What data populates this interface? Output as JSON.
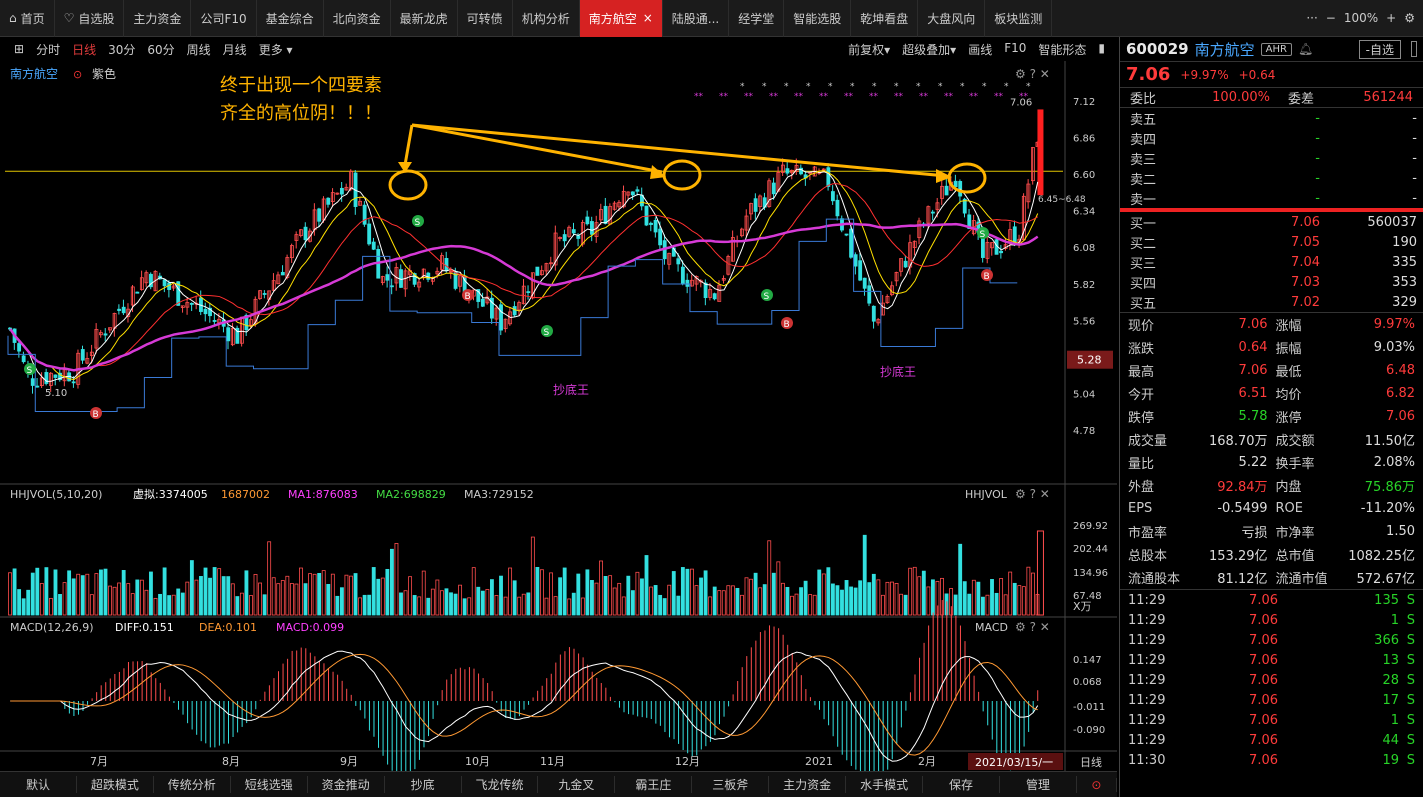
{
  "top_tabs": [
    "首页",
    "自选股",
    "主力资金",
    "公司F10",
    "基金综合",
    "北向资金",
    "最新龙虎",
    "可转债",
    "机构分析",
    "南方航空",
    "陆股通...",
    "经学堂",
    "智能选股",
    "乾坤看盘",
    "大盘风向",
    "板块监测"
  ],
  "active_tab": "南方航空",
  "zoom": "100%",
  "periods": [
    "分时",
    "日线",
    "30分",
    "60分",
    "周线",
    "月线",
    "更多"
  ],
  "active_period": "日线",
  "toolbar_right": [
    "前复权",
    "超级叠加",
    "画线",
    "F10",
    "智能形态"
  ],
  "chart_title": "南方航空",
  "chart_overlay": "紫色",
  "annotation_line1": "终于出现一个四要素",
  "annotation_line2": "齐全的高位阴！！！",
  "chaodi": "抄底王",
  "price_axis": [
    "7.12",
    "6.86",
    "6.60",
    "6.34",
    "6.08",
    "5.82",
    "5.56",
    "5.28",
    "5.04",
    "4.78"
  ],
  "current_label": "5.28",
  "high_label": "7.06",
  "range_label": "6.45~6.48",
  "low_mark": "5.10",
  "vol_header": {
    "name": "HHJVOL(5,10,20)",
    "virtual": "虚拟:3374005",
    "v2": "1687002",
    "ma1": "MA1:876083",
    "ma2": "MA2:698829",
    "ma3": "MA3:729152",
    "tag": "HHJVOL"
  },
  "vol_axis": [
    "269.92",
    "202.44",
    "134.96",
    "67.48"
  ],
  "vol_unit": "X万",
  "macd_header": {
    "name": "MACD(12,26,9)",
    "diff": "DIFF:0.151",
    "dea": "DEA:0.101",
    "macd": "MACD:0.099",
    "tag": "MACD"
  },
  "macd_axis": [
    "0.147",
    "0.068",
    "-0.011",
    "-0.090"
  ],
  "months": [
    "7月",
    "8月",
    "9月",
    "10月",
    "11月",
    "12月",
    "2021",
    "2月"
  ],
  "date_label": "2021/03/15/一",
  "date_mode": "日线",
  "bottom": [
    "默认",
    "超跌模式",
    "传统分析",
    "短线选强",
    "资金推动",
    "抄底",
    "飞龙传统",
    "九金叉",
    "霸王庄",
    "三板斧",
    "主力资金",
    "水手模式",
    "保存",
    "管理"
  ],
  "stock": {
    "code": "600029",
    "name": "南方航空",
    "tag": "AHR",
    "zixuan": "-自选",
    "price": "7.06",
    "pct": "+9.97%",
    "chg": "+0.64"
  },
  "weibi": {
    "k1": "委比",
    "v1": "100.00%",
    "k2": "委差",
    "v2": "561244"
  },
  "sells": [
    {
      "l": "卖五",
      "p": "-",
      "v": "-"
    },
    {
      "l": "卖四",
      "p": "-",
      "v": "-"
    },
    {
      "l": "卖三",
      "p": "-",
      "v": "-"
    },
    {
      "l": "卖二",
      "p": "-",
      "v": "-"
    },
    {
      "l": "卖一",
      "p": "-",
      "v": "-"
    }
  ],
  "buys": [
    {
      "l": "买一",
      "p": "7.06",
      "v": "560037"
    },
    {
      "l": "买二",
      "p": "7.05",
      "v": "190"
    },
    {
      "l": "买三",
      "p": "7.04",
      "v": "335"
    },
    {
      "l": "买四",
      "p": "7.03",
      "v": "353"
    },
    {
      "l": "买五",
      "p": "7.02",
      "v": "329"
    }
  ],
  "stats": [
    [
      "现价",
      "7.06",
      "r"
    ],
    [
      "涨幅",
      "9.97%",
      "r"
    ],
    [
      "涨跌",
      "0.64",
      "r"
    ],
    [
      "振幅",
      "9.03%",
      "w"
    ],
    [
      "最高",
      "7.06",
      "r"
    ],
    [
      "最低",
      "6.48",
      "r"
    ],
    [
      "今开",
      "6.51",
      "r"
    ],
    [
      "均价",
      "6.82",
      "r"
    ],
    [
      "跌停",
      "5.78",
      "g"
    ],
    [
      "涨停",
      "7.06",
      "r"
    ],
    [
      "成交量",
      "168.70万",
      "w"
    ],
    [
      "成交额",
      "11.50亿",
      "w"
    ],
    [
      "量比",
      "5.22",
      "w"
    ],
    [
      "换手率",
      "2.08%",
      "w"
    ],
    [
      "外盘",
      "92.84万",
      "r"
    ],
    [
      "内盘",
      "75.86万",
      "g"
    ],
    [
      "EPS",
      "-0.5499",
      "w"
    ],
    [
      "ROE",
      "-11.20%",
      "w"
    ],
    [
      "市盈率",
      "亏损",
      "w"
    ],
    [
      "市净率",
      "1.50",
      "w"
    ],
    [
      "总股本",
      "153.29亿",
      "w"
    ],
    [
      "总市值",
      "1082.25亿",
      "w"
    ],
    [
      "流通股本",
      "81.12亿",
      "w"
    ],
    [
      "流通市值",
      "572.67亿",
      "w"
    ]
  ],
  "ticks": [
    [
      "11:29",
      "7.06",
      "135",
      "S"
    ],
    [
      "11:29",
      "7.06",
      "1",
      "S"
    ],
    [
      "11:29",
      "7.06",
      "366",
      "S"
    ],
    [
      "11:29",
      "7.06",
      "13",
      "S"
    ],
    [
      "11:29",
      "7.06",
      "28",
      "S"
    ],
    [
      "11:29",
      "7.06",
      "17",
      "S"
    ],
    [
      "11:29",
      "7.06",
      "1",
      "S"
    ],
    [
      "11:29",
      "7.06",
      "44",
      "S"
    ],
    [
      "11:30",
      "7.06",
      "19",
      "S"
    ]
  ]
}
